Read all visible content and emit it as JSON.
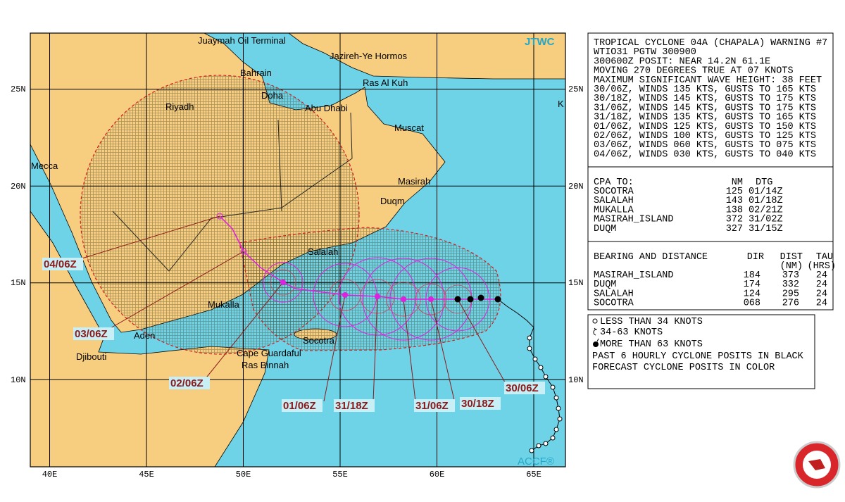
{
  "map": {
    "source_label": "JTWC",
    "credit": "ACCF®",
    "lat_labels": [
      "25N",
      "20N",
      "15N",
      "10N"
    ],
    "lon_labels": [
      "40E",
      "45E",
      "50E",
      "55E",
      "60E",
      "65E"
    ],
    "places": [
      "Juaymah Oil Terminal",
      "Jazireh-Ye Hormos",
      "Bahrain",
      "Ras Al Kuh",
      "Doha",
      "Abu Dhabi",
      "Riyadh",
      "Muscat",
      "Mecca",
      "Masirah",
      "Duqm",
      "Salalah",
      "Mukalla",
      "Aden",
      "Socotra",
      "Djibouti",
      "Cape Guardaful",
      "Ras Binnah",
      "K"
    ],
    "forecast_labels": [
      "04/06Z",
      "03/06Z",
      "02/06Z",
      "01/06Z",
      "31/18Z",
      "31/06Z",
      "30/18Z",
      "30/06Z"
    ]
  },
  "warning": {
    "lines": [
      "TROPICAL CYCLONE 04A (CHAPALA) WARNING #7",
      "WTIO31 PGTW 300900",
      "300600Z POSIT: NEAR 14.2N 61.1E",
      "MOVING 270 DEGREES TRUE AT 07 KNOTS",
      "MAXIMUM SIGNIFICANT WAVE HEIGHT: 38 FEET",
      "30/06Z, WINDS 135 KTS, GUSTS TO 165 KTS",
      "30/18Z, WINDS 145 KTS, GUSTS TO 175 KTS",
      "31/06Z, WINDS 145 KTS, GUSTS TO 175 KTS",
      "31/18Z, WINDS 135 KTS, GUSTS TO 165 KTS",
      "01/06Z, WINDS 125 KTS, GUSTS TO 150 KTS",
      "02/06Z, WINDS 100 KTS, GUSTS TO 125 KTS",
      "03/06Z, WINDS 060 KTS, GUSTS TO 075 KTS",
      "04/06Z, WINDS 030 KTS, GUSTS TO 040 KTS"
    ]
  },
  "cpa": {
    "header": [
      "CPA TO:",
      "NM",
      "DTG"
    ],
    "rows": [
      [
        "SOCOTRA",
        "125",
        "01/14Z"
      ],
      [
        "SALALAH",
        "143",
        "01/18Z"
      ],
      [
        "MUKALLA",
        "138",
        "02/21Z"
      ],
      [
        "MASIRAH_ISLAND",
        "372",
        "31/02Z"
      ],
      [
        "DUQM",
        "327",
        "31/15Z"
      ]
    ]
  },
  "bearing": {
    "header": [
      "BEARING AND DISTANCE",
      "DIR",
      "DIST",
      "TAU"
    ],
    "subheader": [
      "(NM)",
      "(HRS)"
    ],
    "rows": [
      [
        "MASIRAH_ISLAND",
        "184",
        "373",
        "24"
      ],
      [
        "DUQM",
        "174",
        "332",
        "24"
      ],
      [
        "SALALAH",
        "124",
        "295",
        "24"
      ],
      [
        "SOCOTRA",
        "068",
        "276",
        "24"
      ]
    ]
  },
  "legend": {
    "items": [
      "LESS THAN 34 KNOTS",
      "34-63 KNOTS",
      "MORE THAN 63 KNOTS",
      "PAST 6 HOURLY CYCLONE POSITS IN BLACK",
      "FORECAST CYCLONE POSITS IN COLOR"
    ]
  }
}
